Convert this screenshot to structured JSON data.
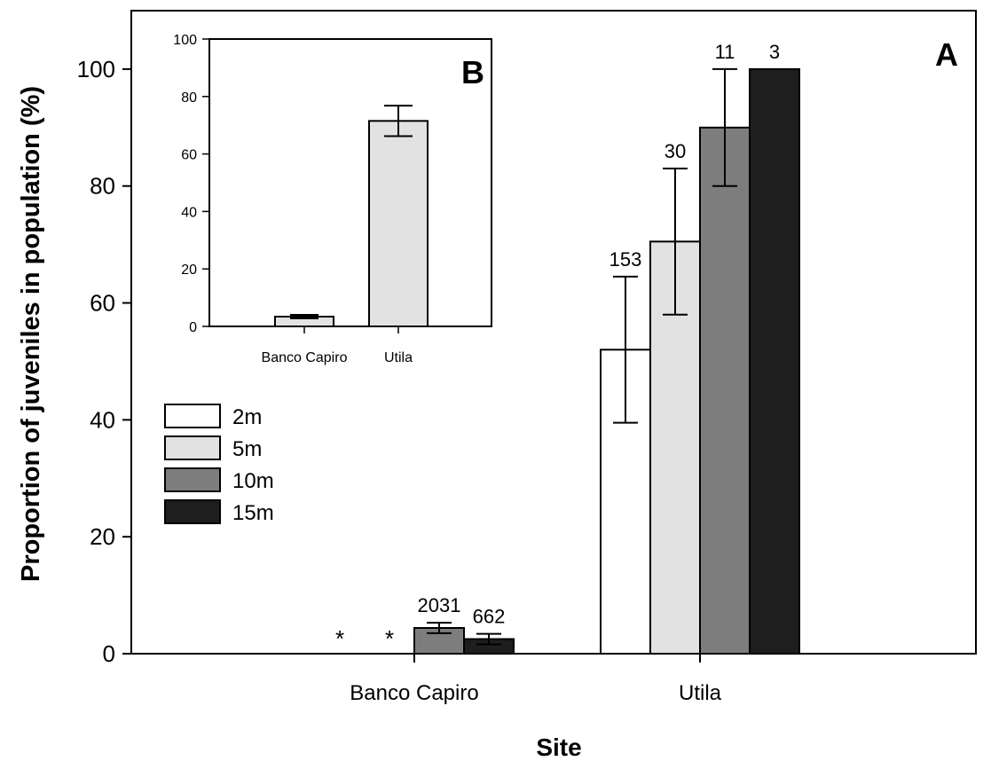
{
  "chart_data": [
    {
      "panel_label": "A",
      "type": "bar",
      "xlabel": "Site",
      "ylabel": "Proportion of juveniles in population (%)",
      "ylim": [
        0,
        110
      ],
      "yticks": [
        0,
        20,
        40,
        60,
        80,
        100
      ],
      "categories": [
        "Banco Capiro",
        "Utila"
      ],
      "series": [
        {
          "name": "2m",
          "color": "#ffffff",
          "values": [
            null,
            52
          ],
          "error": [
            null,
            12.5
          ],
          "n_labels": [
            "*",
            "153"
          ]
        },
        {
          "name": "5m",
          "color": "#e2e2e2",
          "values": [
            null,
            70.5
          ],
          "error": [
            null,
            12.5
          ],
          "n_labels": [
            "*",
            "30"
          ]
        },
        {
          "name": "10m",
          "color": "#7d7d7d",
          "values": [
            4.4,
            90
          ],
          "error": [
            0.9,
            10
          ],
          "n_labels": [
            "2031",
            "11"
          ]
        },
        {
          "name": "15m",
          "color": "#1e1e1e",
          "values": [
            2.5,
            100
          ],
          "error": [
            0.9,
            null
          ],
          "n_labels": [
            "662",
            "3"
          ]
        }
      ],
      "legend_position": "left-middle",
      "grid": false
    },
    {
      "panel_label": "B",
      "type": "bar",
      "categories": [
        "Banco Capiro",
        "Utila"
      ],
      "values": [
        3.4,
        71.5
      ],
      "error": [
        0.6,
        5.3
      ],
      "ylim": [
        0,
        100
      ],
      "yticks": [
        0,
        20,
        40,
        60,
        80,
        100
      ],
      "color": "#e2e2e2",
      "grid": false
    }
  ]
}
